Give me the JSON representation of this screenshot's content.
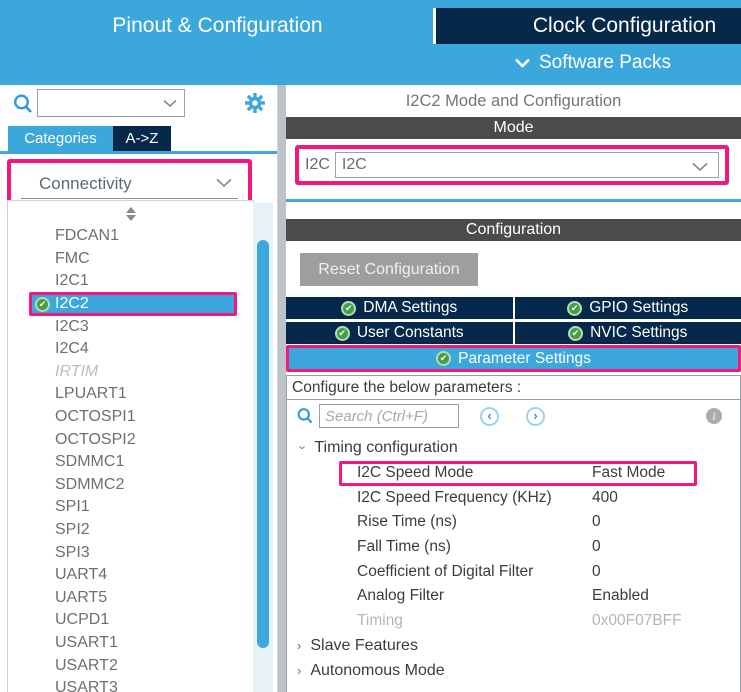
{
  "header": {
    "tabs": [
      {
        "label": "Pinout & Configuration",
        "active": true
      },
      {
        "label": "Clock Configuration",
        "active": false
      }
    ],
    "software_packs_label": "Software Packs"
  },
  "sidebar": {
    "search": {
      "value": "",
      "placeholder": ""
    },
    "tabs": [
      {
        "label": "Categories",
        "active": true
      },
      {
        "label": "A->Z",
        "active": false
      }
    ],
    "category_dropdown": {
      "value": "Connectivity"
    },
    "items": [
      {
        "label": "FDCAN1"
      },
      {
        "label": "FMC"
      },
      {
        "label": "I2C1"
      },
      {
        "label": "I2C2",
        "selected": true,
        "checked": true
      },
      {
        "label": "I2C3"
      },
      {
        "label": "I2C4"
      },
      {
        "label": "IRTIM",
        "disabled": true
      },
      {
        "label": "LPUART1"
      },
      {
        "label": "OCTOSPI1"
      },
      {
        "label": "OCTOSPI2"
      },
      {
        "label": "SDMMC1"
      },
      {
        "label": "SDMMC2"
      },
      {
        "label": "SPI1"
      },
      {
        "label": "SPI2"
      },
      {
        "label": "SPI3"
      },
      {
        "label": "UART4"
      },
      {
        "label": "UART5"
      },
      {
        "label": "UCPD1"
      },
      {
        "label": "USART1"
      },
      {
        "label": "USART2"
      },
      {
        "label": "USART3"
      }
    ]
  },
  "main": {
    "title": "I2C2 Mode and Configuration",
    "mode": {
      "section_title": "Mode",
      "label": "I2C",
      "selected_value": "I2C"
    },
    "configuration": {
      "section_title": "Configuration",
      "reset_button_label": "Reset Configuration",
      "tabs": [
        {
          "label": "DMA Settings",
          "checked": true
        },
        {
          "label": "GPIO Settings",
          "checked": true
        },
        {
          "label": "User Constants",
          "checked": true
        },
        {
          "label": "NVIC Settings",
          "checked": true
        },
        {
          "label": "Parameter Settings",
          "checked": true,
          "active": true
        }
      ],
      "configure_label": "Configure the below parameters :",
      "search": {
        "value": "",
        "placeholder": "Search (Ctrl+F)"
      },
      "tree": {
        "groups": [
          {
            "label": "Timing configuration",
            "expanded": true,
            "params": [
              {
                "name": "I2C Speed Mode",
                "value": "Fast Mode",
                "highlighted": true
              },
              {
                "name": "I2C Speed Frequency (KHz)",
                "value": "400"
              },
              {
                "name": "Rise Time (ns)",
                "value": "0"
              },
              {
                "name": "Fall Time (ns)",
                "value": "0"
              },
              {
                "name": "Coefficient of Digital Filter",
                "value": "0"
              },
              {
                "name": "Analog Filter",
                "value": "Enabled"
              },
              {
                "name": "Timing",
                "value": "0x00F07BFF",
                "disabled": true
              }
            ]
          },
          {
            "label": "Slave Features",
            "expanded": false
          },
          {
            "label": "Autonomous Mode",
            "expanded": false
          }
        ]
      }
    }
  },
  "icons": {
    "search": "magnifier-icon",
    "settings": "gear-icon",
    "dropdown": "chevron-down-icon",
    "enabled_badge": "green-check-icon",
    "previous": "circle-chevron-left-icon",
    "next": "circle-chevron-right-icon",
    "info": "info-icon",
    "sort": "sort-arrows-icon"
  },
  "colors": {
    "accent_blue": "#3CA7DB",
    "navy": "#05284B",
    "bar_grey": "#4B4B4B",
    "highlight_pink": "#F2187E",
    "check_green": "#43A047"
  }
}
